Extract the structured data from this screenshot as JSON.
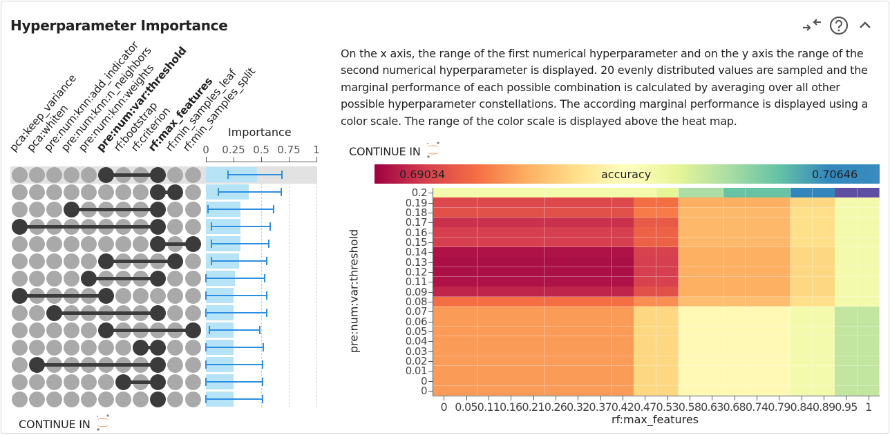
{
  "header": {
    "title": "Hyperparameter Importance",
    "icons": [
      "compress-arrows-icon",
      "help-circle-icon",
      "chevron-up-icon"
    ]
  },
  "description": "On the x axis, the range of the first numerical hyperparameter and on the y axis the range of the second numerical hyperparameter is displayed. 20 evenly distributed values are sampled and the marginal performance of each possible combination is calculated by averaging over all other possible hyperparameter constellations. The according marginal performance is displayed using a color scale. The range of the color scale is displayed above the heat map.",
  "continue_label": "CONTINUE IN",
  "continue_icon": "jupyter-icon",
  "colors": {
    "dot_inactive": "#a9a9a9",
    "dot_active": "#3b3b3b",
    "bar": "#b7e3f7",
    "error_bar": "#2b8ee0",
    "highlight_row": "#e2e2e2",
    "accent_orange": "#f37726"
  },
  "chart_data": [
    {
      "type": "bar",
      "title": "Importance",
      "hyperparameters": [
        "pca:keep_variance",
        "pca:whiten",
        "pre:num:knn:add_indicator",
        "pre:num:knn:n_neighbors",
        "pre:num:knn:weights",
        "pre:num:var:threshold",
        "rf:bootstrap",
        "rf:criterion",
        "rf:max_features",
        "rf:min_samples_leaf",
        "rf:min_samples_split"
      ],
      "bold_hyperparameters": [
        "pre:num:var:threshold",
        "rf:max_features"
      ],
      "xlim": [
        0,
        1
      ],
      "xticks": [
        "0",
        "0.25",
        "0.5",
        "0.75",
        "1"
      ],
      "highlighted_row": 0,
      "rows": [
        {
          "pair": [
            "pre:num:var:threshold",
            "rf:max_features"
          ],
          "importance": 0.46,
          "low": 0.2,
          "high": 0.69
        },
        {
          "pair": [
            "rf:max_features",
            "rf:min_samples_leaf"
          ],
          "importance": 0.39,
          "low": 0.11,
          "high": 0.68
        },
        {
          "pair": [
            "pre:num:knn:n_neighbors",
            "rf:max_features"
          ],
          "importance": 0.31,
          "low": 0.02,
          "high": 0.61
        },
        {
          "pair": [
            "pca:keep_variance",
            "rf:max_features"
          ],
          "importance": 0.31,
          "low": 0.05,
          "high": 0.58
        },
        {
          "pair": [
            "rf:max_features",
            "rf:min_samples_split"
          ],
          "importance": 0.31,
          "low": 0.05,
          "high": 0.57
        },
        {
          "pair": [
            "pre:num:var:threshold",
            "rf:min_samples_leaf"
          ],
          "importance": 0.3,
          "low": 0.05,
          "high": 0.55
        },
        {
          "pair": [
            "pre:num:knn:weights",
            "rf:max_features"
          ],
          "importance": 0.26,
          "low": 0,
          "high": 0.53
        },
        {
          "pair": [
            "pca:keep_variance",
            "pre:num:var:threshold"
          ],
          "importance": 0.25,
          "low": 0,
          "high": 0.55
        },
        {
          "pair": [
            "pre:num:knn:add_indicator",
            "rf:max_features"
          ],
          "importance": 0.25,
          "low": 0,
          "high": 0.55
        },
        {
          "pair": [
            "pre:num:var:threshold",
            "rf:min_samples_split"
          ],
          "importance": 0.25,
          "low": 0.03,
          "high": 0.49
        },
        {
          "pair": [
            "rf:criterion",
            "rf:max_features"
          ],
          "importance": 0.25,
          "low": 0,
          "high": 0.52
        },
        {
          "pair": [
            "pca:whiten",
            "rf:max_features"
          ],
          "importance": 0.25,
          "low": 0,
          "high": 0.51
        },
        {
          "pair": [
            "rf:bootstrap",
            "rf:max_features"
          ],
          "importance": 0.25,
          "low": 0,
          "high": 0.51
        },
        {
          "pair": [
            "rf:max_features"
          ],
          "importance": 0.25,
          "low": 0,
          "high": 0.51
        }
      ]
    },
    {
      "type": "heatmap",
      "xlabel": "rf:max_features",
      "ylabel": "pre:num:var:threshold",
      "colorbar": {
        "label": "accuracy",
        "min_label": "0.69034",
        "max_label": "0.70646",
        "min": 0.69034,
        "max": 0.70646,
        "colormap": "spectral"
      },
      "xticks": [
        "0",
        "0.05",
        "0.11",
        "0.16",
        "0.21",
        "0.26",
        "0.32",
        "0.37",
        "0.42",
        "0.47",
        "0.53",
        "0.58",
        "0.63",
        "0.68",
        "0.74",
        "0.79",
        "0.84",
        "0.89",
        "0.95",
        "1"
      ],
      "yticks_top_to_bottom": [
        "0.2",
        "0.19",
        "0.18",
        "0.17",
        "0.16",
        "0.15",
        "0.14",
        "0.13",
        "0.12",
        "0.11",
        "0.09",
        "0.08",
        "0.07",
        "0.06",
        "0.05",
        "0.04",
        "0.03",
        "0.02",
        "0.01",
        "0"
      ],
      "yticks_extra": [
        "0"
      ],
      "values_top_to_bottom": [
        [
          0.6992,
          0.6992,
          0.6992,
          0.6992,
          0.6992,
          0.6992,
          0.6992,
          0.6992,
          0.6992,
          0.6992,
          0.7,
          0.7016,
          0.7016,
          0.7032,
          0.7032,
          0.7032,
          0.7049,
          0.7049,
          0.7065,
          0.7065
        ],
        [
          0.6923,
          0.6923,
          0.6923,
          0.6923,
          0.6923,
          0.6923,
          0.6923,
          0.6923,
          0.6923,
          0.6936,
          0.6936,
          0.6952,
          0.6952,
          0.6952,
          0.6952,
          0.6952,
          0.6965,
          0.6965,
          0.6992,
          0.6992
        ],
        [
          0.6926,
          0.6926,
          0.6926,
          0.6926,
          0.6926,
          0.6926,
          0.6926,
          0.6926,
          0.6926,
          0.6939,
          0.6939,
          0.6955,
          0.6955,
          0.6955,
          0.6955,
          0.6955,
          0.6968,
          0.6968,
          0.6992,
          0.6992
        ],
        [
          0.6916,
          0.6916,
          0.6916,
          0.6916,
          0.6916,
          0.6916,
          0.6916,
          0.6916,
          0.6916,
          0.6929,
          0.6929,
          0.6955,
          0.6955,
          0.6955,
          0.6955,
          0.6955,
          0.6968,
          0.6968,
          0.6992,
          0.6992
        ],
        [
          0.692,
          0.692,
          0.692,
          0.692,
          0.692,
          0.692,
          0.692,
          0.692,
          0.692,
          0.6932,
          0.6932,
          0.6955,
          0.6955,
          0.6955,
          0.6955,
          0.6955,
          0.6968,
          0.6968,
          0.6992,
          0.6992
        ],
        [
          0.692,
          0.692,
          0.692,
          0.692,
          0.692,
          0.692,
          0.692,
          0.692,
          0.692,
          0.6932,
          0.6932,
          0.6955,
          0.6955,
          0.6955,
          0.6955,
          0.6955,
          0.6968,
          0.6968,
          0.6992,
          0.6992
        ],
        [
          0.6908,
          0.6908,
          0.6908,
          0.6908,
          0.6908,
          0.6908,
          0.6908,
          0.6908,
          0.6908,
          0.6921,
          0.6921,
          0.6952,
          0.6952,
          0.6952,
          0.6952,
          0.6952,
          0.6965,
          0.6965,
          0.6992,
          0.6992
        ],
        [
          0.6907,
          0.6907,
          0.6907,
          0.6907,
          0.6907,
          0.6907,
          0.6907,
          0.6907,
          0.6907,
          0.692,
          0.692,
          0.6952,
          0.6952,
          0.6952,
          0.6952,
          0.6952,
          0.6965,
          0.6965,
          0.6992,
          0.6992
        ],
        [
          0.6907,
          0.6907,
          0.6907,
          0.6907,
          0.6907,
          0.6907,
          0.6907,
          0.6907,
          0.6907,
          0.692,
          0.692,
          0.6952,
          0.6952,
          0.6952,
          0.6952,
          0.6952,
          0.6965,
          0.6965,
          0.6992,
          0.6992
        ],
        [
          0.6908,
          0.6908,
          0.6908,
          0.6908,
          0.6908,
          0.6908,
          0.6908,
          0.6908,
          0.6908,
          0.6921,
          0.6921,
          0.6952,
          0.6952,
          0.6952,
          0.6952,
          0.6952,
          0.6965,
          0.6965,
          0.6992,
          0.6992
        ],
        [
          0.6913,
          0.6913,
          0.6913,
          0.6913,
          0.6913,
          0.6913,
          0.6913,
          0.6913,
          0.6913,
          0.6926,
          0.6926,
          0.6952,
          0.6952,
          0.6952,
          0.6952,
          0.6952,
          0.6965,
          0.6965,
          0.6992,
          0.6992
        ],
        [
          0.6936,
          0.6936,
          0.6936,
          0.6936,
          0.6936,
          0.6936,
          0.6936,
          0.6936,
          0.6936,
          0.6944,
          0.6944,
          0.6957,
          0.6957,
          0.6957,
          0.6957,
          0.6957,
          0.6968,
          0.6968,
          0.6992,
          0.6992
        ],
        [
          0.6947,
          0.6947,
          0.6947,
          0.6947,
          0.6947,
          0.6947,
          0.6947,
          0.6947,
          0.6947,
          0.6965,
          0.6965,
          0.6981,
          0.6981,
          0.6981,
          0.6981,
          0.6981,
          0.6992,
          0.6992,
          0.701,
          0.701
        ],
        [
          0.6947,
          0.6947,
          0.6947,
          0.6947,
          0.6947,
          0.6947,
          0.6947,
          0.6947,
          0.6947,
          0.6965,
          0.6965,
          0.6981,
          0.6981,
          0.6981,
          0.6981,
          0.6981,
          0.6992,
          0.6992,
          0.701,
          0.701
        ],
        [
          0.6947,
          0.6947,
          0.6947,
          0.6947,
          0.6947,
          0.6947,
          0.6947,
          0.6947,
          0.6947,
          0.6965,
          0.6965,
          0.6981,
          0.6981,
          0.6981,
          0.6981,
          0.6981,
          0.6992,
          0.6992,
          0.701,
          0.701
        ],
        [
          0.6947,
          0.6947,
          0.6947,
          0.6947,
          0.6947,
          0.6947,
          0.6947,
          0.6947,
          0.6947,
          0.6965,
          0.6965,
          0.6981,
          0.6981,
          0.6981,
          0.6981,
          0.6981,
          0.6992,
          0.6992,
          0.701,
          0.701
        ],
        [
          0.6947,
          0.6947,
          0.6947,
          0.6947,
          0.6947,
          0.6947,
          0.6947,
          0.6947,
          0.6947,
          0.6965,
          0.6965,
          0.6981,
          0.6981,
          0.6981,
          0.6981,
          0.6981,
          0.6992,
          0.6992,
          0.701,
          0.701
        ],
        [
          0.6947,
          0.6947,
          0.6947,
          0.6947,
          0.6947,
          0.6947,
          0.6947,
          0.6947,
          0.6947,
          0.6965,
          0.6965,
          0.6981,
          0.6981,
          0.6981,
          0.6981,
          0.6981,
          0.6992,
          0.6992,
          0.701,
          0.701
        ],
        [
          0.6947,
          0.6947,
          0.6947,
          0.6947,
          0.6947,
          0.6947,
          0.6947,
          0.6947,
          0.6947,
          0.6965,
          0.6965,
          0.6981,
          0.6981,
          0.6981,
          0.6981,
          0.6981,
          0.6992,
          0.6992,
          0.701,
          0.701
        ],
        [
          0.6947,
          0.6947,
          0.6947,
          0.6947,
          0.6947,
          0.6947,
          0.6947,
          0.6947,
          0.6947,
          0.6965,
          0.6965,
          0.6981,
          0.6981,
          0.6981,
          0.6981,
          0.6981,
          0.6992,
          0.6992,
          0.701,
          0.701
        ],
        [
          0.6947,
          0.6947,
          0.6947,
          0.6947,
          0.6947,
          0.6947,
          0.6947,
          0.6947,
          0.6947,
          0.6965,
          0.6965,
          0.6981,
          0.6981,
          0.6981,
          0.6981,
          0.6981,
          0.6992,
          0.6992,
          0.701,
          0.701
        ]
      ]
    }
  ]
}
